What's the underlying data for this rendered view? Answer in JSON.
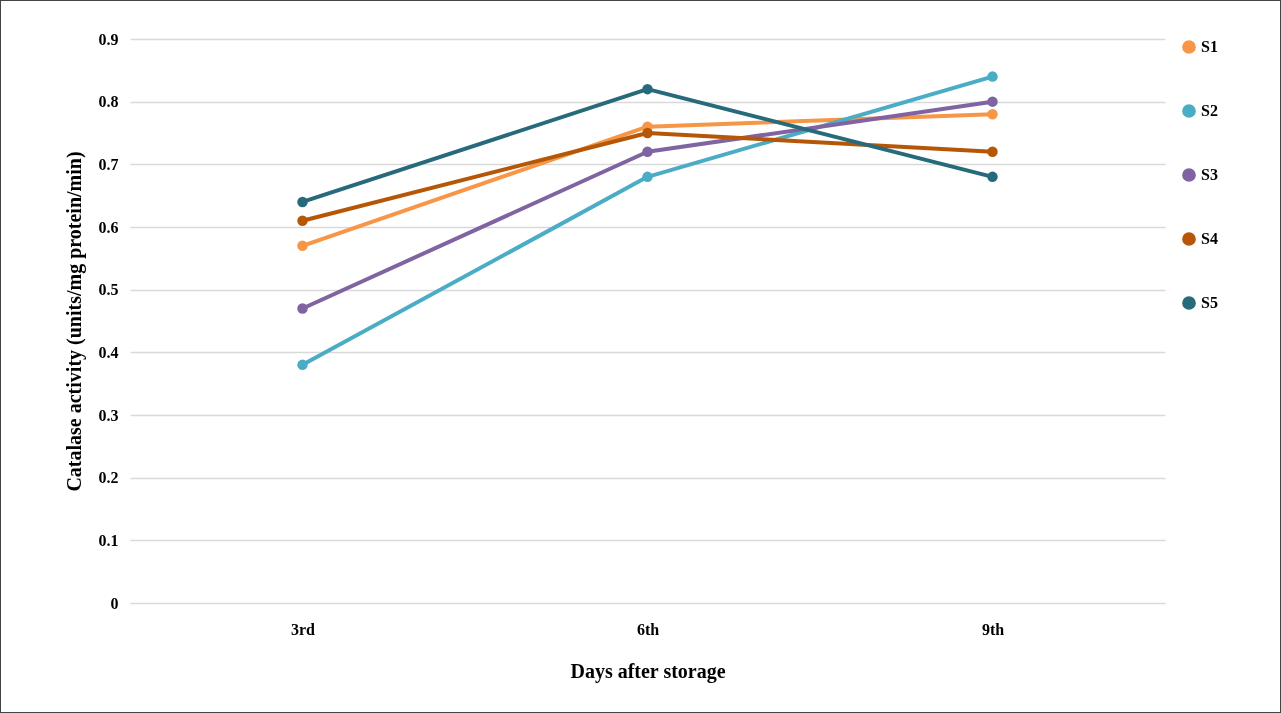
{
  "chart_data": {
    "type": "line",
    "xlabel": "Days after storage",
    "ylabel": "Catalase activity (units/mg protein/min)",
    "categories": [
      "3rd",
      "6th",
      "9th"
    ],
    "series": [
      {
        "name": "S1",
        "color": "#f79646",
        "values": [
          0.57,
          0.76,
          0.78
        ]
      },
      {
        "name": "S2",
        "color": "#4bacc6",
        "values": [
          0.38,
          0.68,
          0.84
        ]
      },
      {
        "name": "S3",
        "color": "#8064a2",
        "values": [
          0.47,
          0.72,
          0.8
        ]
      },
      {
        "name": "S4",
        "color": "#b65708",
        "values": [
          0.61,
          0.75,
          0.72
        ]
      },
      {
        "name": "S5",
        "color": "#276a7c",
        "values": [
          0.64,
          0.82,
          0.68
        ]
      }
    ],
    "ylim": [
      0,
      0.9
    ],
    "yticks": [
      0,
      0.1,
      0.2,
      0.3,
      0.4,
      0.5,
      0.6,
      0.7,
      0.8,
      0.9
    ],
    "grid": "y",
    "legend": "right",
    "marker": "circle",
    "line_style": "solid"
  }
}
